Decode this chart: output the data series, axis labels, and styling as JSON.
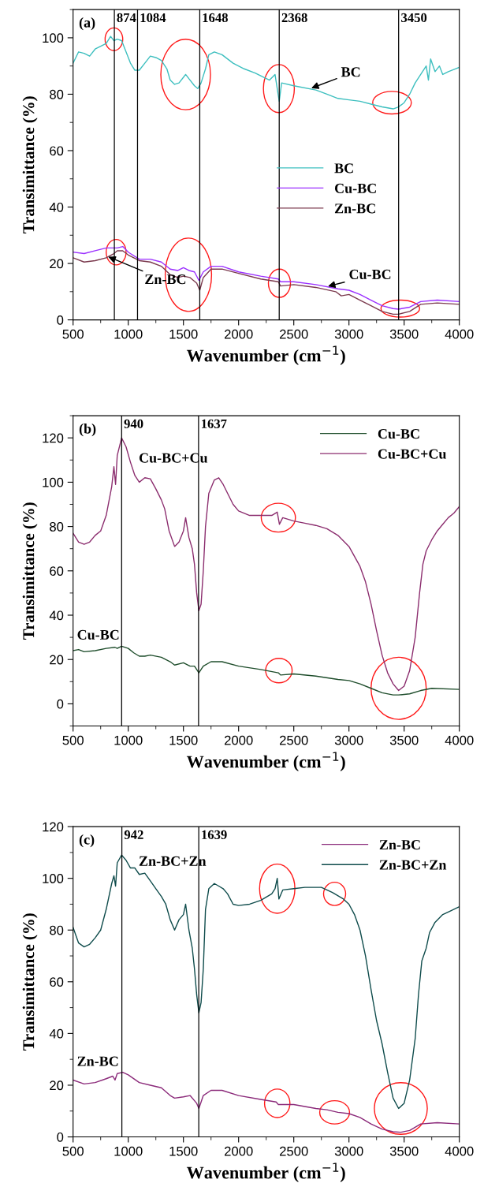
{
  "chart_data": [
    {
      "type": "line",
      "title": "(a)",
      "xlabel": "Wavenumber (cm$^{−1}$)",
      "ylabel": "Transimittance (%)",
      "xlim": [
        500,
        4000
      ],
      "ylim": [
        0,
        110
      ],
      "xticks": [
        500,
        1000,
        1500,
        2000,
        2500,
        3000,
        3500,
        4000
      ],
      "yticks": [
        0,
        20,
        40,
        60,
        80,
        100
      ],
      "legend": "center right",
      "series": [
        {
          "name": "BC",
          "color": "#3dbfbf",
          "x": [
            500,
            550,
            600,
            650,
            700,
            750,
            800,
            840,
            870,
            900,
            940,
            980,
            1020,
            1060,
            1100,
            1150,
            1200,
            1250,
            1300,
            1350,
            1380,
            1420,
            1460,
            1500,
            1520,
            1560,
            1600,
            1630,
            1660,
            1700,
            1730,
            1780,
            1850,
            1950,
            2050,
            2150,
            2280,
            2330,
            2350,
            2368,
            2390,
            2500,
            2700,
            2800,
            2900,
            3000,
            3100,
            3200,
            3300,
            3400,
            3450,
            3500,
            3550,
            3600,
            3650,
            3700,
            3720,
            3740,
            3780,
            3820,
            3850,
            3900,
            4000
          ],
          "values": [
            91,
            95,
            94.5,
            93.5,
            96,
            97,
            98,
            100.5,
            99,
            99.5,
            99,
            95,
            91,
            88.5,
            88.5,
            91,
            93.5,
            93,
            92,
            89,
            85,
            83.5,
            84,
            86,
            87,
            85,
            83,
            82,
            84,
            89,
            94,
            95,
            94,
            91,
            89,
            87.5,
            85,
            87,
            82,
            77.5,
            84,
            83,
            81.5,
            80,
            78.5,
            78,
            77.5,
            76.5,
            75.5,
            74.8,
            75.5,
            77,
            80,
            84,
            87,
            90,
            85,
            92.5,
            88,
            90,
            87,
            88,
            89.5
          ]
        },
        {
          "name": "Cu-BC",
          "color": "#9b30ff",
          "x": [
            500,
            600,
            700,
            800,
            900,
            950,
            1000,
            1100,
            1200,
            1300,
            1380,
            1450,
            1500,
            1550,
            1600,
            1640,
            1680,
            1750,
            1850,
            2000,
            2200,
            2360,
            2380,
            2500,
            2700,
            2900,
            3000,
            3100,
            3200,
            3300,
            3400,
            3450,
            3550,
            3650,
            3800,
            4000
          ],
          "values": [
            24,
            23.5,
            24.5,
            25.5,
            25.5,
            26,
            24,
            21.5,
            21.5,
            20.5,
            18,
            17.5,
            18.5,
            17.5,
            17,
            14,
            17,
            19,
            19,
            17,
            15.5,
            14.5,
            13.5,
            13.5,
            12.5,
            11,
            10.5,
            9,
            7,
            5,
            4,
            3.8,
            4.5,
            6.5,
            7,
            6.5
          ]
        },
        {
          "name": "Zn-BC",
          "color": "#7b3a4e",
          "x": [
            500,
            600,
            700,
            800,
            870,
            900,
            950,
            1000,
            1100,
            1200,
            1300,
            1380,
            1450,
            1500,
            1560,
            1620,
            1648,
            1680,
            1750,
            1850,
            2000,
            2200,
            2360,
            2380,
            2500,
            2700,
            2880,
            2930,
            3000,
            3100,
            3200,
            3300,
            3400,
            3450,
            3550,
            3650,
            3800,
            4000
          ],
          "values": [
            22,
            20.5,
            21,
            22,
            23.5,
            24.5,
            24.5,
            23,
            21,
            20.5,
            19,
            16,
            15,
            15.5,
            15,
            13,
            10.5,
            15,
            18,
            18,
            16.5,
            14.5,
            13.5,
            12,
            12.5,
            11.5,
            10,
            8.5,
            9,
            7,
            5,
            3,
            2,
            2,
            3,
            5.5,
            6,
            5.5
          ]
        }
      ],
      "ref_lines": [
        {
          "axis": "x",
          "value": 874,
          "label": "874"
        },
        {
          "axis": "x",
          "value": 1084,
          "label": "1084"
        },
        {
          "axis": "x",
          "value": 1648,
          "label": "1648"
        },
        {
          "axis": "x",
          "value": 2368,
          "label": "2368"
        },
        {
          "axis": "x",
          "value": 3450,
          "label": "3450"
        }
      ],
      "annotations": [
        {
          "text": "BC",
          "x": 2650,
          "y": 82
        },
        {
          "text": "Zn-BC",
          "x": 810,
          "y": 22.5
        },
        {
          "text": "Cu-BC",
          "x": 2800,
          "y": 11.8
        }
      ]
    },
    {
      "type": "line",
      "title": "(b)",
      "xlabel": "Wavenumber (cm$^{−1}$)",
      "ylabel": "Transimittance (%)",
      "xlim": [
        500,
        4000
      ],
      "ylim": [
        -10,
        130
      ],
      "xticks": [
        500,
        1000,
        1500,
        2000,
        2500,
        3000,
        3500,
        4000
      ],
      "yticks": [
        0,
        20,
        40,
        60,
        80,
        100,
        120
      ],
      "legend": "upper right",
      "series": [
        {
          "name": "Cu-BC",
          "color": "#1e4d2b",
          "x": [
            500,
            550,
            600,
            700,
            800,
            880,
            900,
            940,
            1000,
            1050,
            1100,
            1150,
            1200,
            1300,
            1380,
            1420,
            1500,
            1560,
            1600,
            1640,
            1680,
            1750,
            1850,
            2000,
            2200,
            2360,
            2380,
            2500,
            2700,
            2900,
            3000,
            3100,
            3200,
            3300,
            3400,
            3450,
            3550,
            3650,
            3750,
            4000
          ],
          "values": [
            24,
            24.5,
            23.5,
            24,
            25,
            25.5,
            25,
            26,
            25,
            23,
            21.5,
            21.5,
            22,
            21,
            19,
            17.5,
            18.5,
            17,
            17,
            14,
            17,
            19,
            19,
            17,
            15.5,
            14,
            13,
            13.5,
            12.5,
            11,
            10.5,
            9,
            7,
            5,
            4,
            4,
            4.5,
            6,
            7,
            6.5
          ]
        },
        {
          "name": "Cu-BC+Cu",
          "color": "#8b2d6e",
          "x": [
            500,
            550,
            600,
            650,
            700,
            750,
            800,
            850,
            870,
            885,
            900,
            940,
            980,
            1020,
            1060,
            1100,
            1150,
            1200,
            1250,
            1300,
            1330,
            1370,
            1420,
            1460,
            1500,
            1520,
            1550,
            1580,
            1600,
            1620,
            1640,
            1660,
            1680,
            1700,
            1730,
            1780,
            1820,
            1860,
            1900,
            1950,
            2000,
            2100,
            2300,
            2350,
            2370,
            2400,
            2500,
            2600,
            2700,
            2800,
            2900,
            3000,
            3100,
            3150,
            3200,
            3250,
            3300,
            3350,
            3400,
            3450,
            3500,
            3550,
            3600,
            3640,
            3670,
            3700,
            3750,
            3800,
            3850,
            3900,
            3950,
            4000
          ],
          "values": [
            77,
            73,
            72,
            73,
            76,
            78,
            85,
            98,
            107,
            99,
            112,
            120,
            116,
            109,
            103,
            100,
            102,
            101.5,
            97,
            92,
            88,
            78,
            71,
            73,
            78,
            84,
            75,
            70,
            63,
            50,
            42,
            45,
            60,
            80,
            95,
            101,
            102,
            99,
            95,
            90,
            87,
            85,
            85,
            86.5,
            81,
            84,
            82.5,
            81.5,
            80.5,
            79,
            76,
            71,
            62,
            55,
            45,
            33,
            22,
            14,
            9,
            6,
            8,
            15,
            30,
            50,
            63,
            69,
            74,
            78,
            81,
            84,
            86,
            89
          ]
        }
      ],
      "ref_lines": [
        {
          "axis": "x",
          "value": 940,
          "label": "940"
        },
        {
          "axis": "x",
          "value": 1637,
          "label": "1637"
        }
      ],
      "annotations": [
        "Cu-BC+Cu",
        "Cu-BC"
      ]
    },
    {
      "type": "line",
      "title": "(c)",
      "xlabel": "Wavenumber (cm$^{−1}$)",
      "ylabel": "Transimittance (%)",
      "xlim": [
        500,
        4000
      ],
      "ylim": [
        0,
        120
      ],
      "xticks": [
        500,
        1000,
        1500,
        2000,
        2500,
        3000,
        3500,
        4000
      ],
      "yticks": [
        0,
        20,
        40,
        60,
        80,
        100,
        120
      ],
      "legend": "upper right",
      "series": [
        {
          "name": "Zn-BC",
          "color": "#8b2a7a",
          "x": [
            500,
            600,
            700,
            800,
            860,
            880,
            900,
            950,
            1000,
            1100,
            1200,
            1300,
            1380,
            1420,
            1500,
            1560,
            1620,
            1640,
            1680,
            1750,
            1850,
            2000,
            2200,
            2340,
            2360,
            2500,
            2700,
            2800,
            2900,
            3000,
            3100,
            3200,
            3300,
            3400,
            3470,
            3550,
            3650,
            3800,
            4000
          ],
          "values": [
            22,
            20.5,
            21,
            22.5,
            23.5,
            22,
            24.5,
            25,
            24,
            21,
            20,
            19,
            16,
            15,
            15.5,
            16,
            13,
            11,
            16,
            18,
            18,
            16,
            14.5,
            13.5,
            12.5,
            12.5,
            11,
            10.5,
            9.5,
            9,
            7.5,
            5,
            3,
            2,
            1.8,
            2.5,
            5,
            5.5,
            5
          ]
        },
        {
          "name": "Zn-BC+Zn",
          "color": "#0f4c4c",
          "x": [
            500,
            550,
            600,
            650,
            700,
            750,
            800,
            850,
            870,
            885,
            900,
            940,
            980,
            1020,
            1060,
            1100,
            1150,
            1200,
            1250,
            1300,
            1340,
            1380,
            1420,
            1460,
            1500,
            1520,
            1550,
            1580,
            1600,
            1620,
            1640,
            1660,
            1680,
            1700,
            1730,
            1780,
            1820,
            1860,
            1900,
            1950,
            2000,
            2100,
            2200,
            2300,
            2330,
            2350,
            2365,
            2400,
            2500,
            2600,
            2750,
            2850,
            2950,
            3000,
            3050,
            3100,
            3150,
            3200,
            3250,
            3300,
            3350,
            3400,
            3450,
            3500,
            3550,
            3600,
            3630,
            3660,
            3700,
            3730,
            3780,
            3850,
            3900,
            4000
          ],
          "values": [
            81,
            75,
            73.5,
            74.5,
            77,
            80,
            88,
            98,
            101,
            97,
            106,
            109,
            107,
            104,
            104,
            101.5,
            102,
            99,
            96,
            93,
            90,
            84,
            80,
            84,
            86,
            90,
            80,
            73,
            65,
            55,
            48,
            52,
            65,
            88,
            96,
            98,
            97,
            96,
            94,
            90,
            89.5,
            90,
            91.5,
            94,
            96,
            100,
            92,
            95.5,
            96,
            96.5,
            96.5,
            94.5,
            92,
            90,
            86,
            80,
            70,
            57,
            45,
            36,
            25,
            15,
            11,
            13,
            22,
            38,
            55,
            68,
            73,
            79,
            83,
            86,
            87,
            89
          ]
        }
      ],
      "ref_lines": [
        {
          "axis": "x",
          "value": 942,
          "label": "942"
        },
        {
          "axis": "x",
          "value": 1639,
          "label": "1639"
        }
      ],
      "annotations": [
        "Zn-BC+Zn",
        "Zn-BC"
      ]
    }
  ]
}
